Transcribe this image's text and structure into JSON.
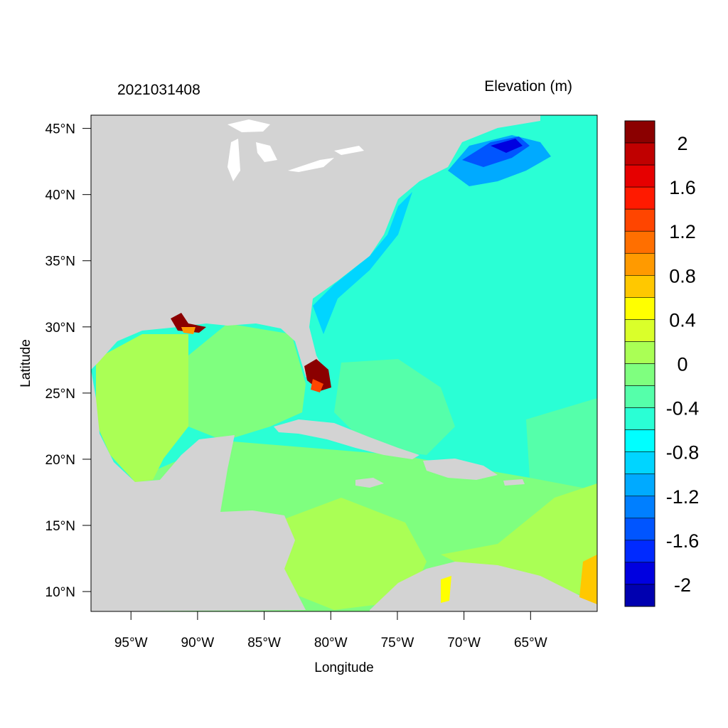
{
  "title_left": "2021031408",
  "title_right": "Elevation (m)",
  "xlabel": "Longitude",
  "ylabel": "Latitude",
  "lon_ticks": [
    {
      "value": -95,
      "label": "95°W"
    },
    {
      "value": -90,
      "label": "90°W"
    },
    {
      "value": -85,
      "label": "85°W"
    },
    {
      "value": -80,
      "label": "80°W"
    },
    {
      "value": -75,
      "label": "75°W"
    },
    {
      "value": -70,
      "label": "70°W"
    },
    {
      "value": -65,
      "label": "65°W"
    }
  ],
  "lat_ticks": [
    {
      "value": 10,
      "label": "10°N"
    },
    {
      "value": 15,
      "label": "15°N"
    },
    {
      "value": 20,
      "label": "20°N"
    },
    {
      "value": 25,
      "label": "25°N"
    },
    {
      "value": 30,
      "label": "30°N"
    },
    {
      "value": 35,
      "label": "35°N"
    },
    {
      "value": 40,
      "label": "40°N"
    },
    {
      "value": 45,
      "label": "45°N"
    }
  ],
  "lon_range": [
    -98,
    -60
  ],
  "lat_range": [
    8.5,
    46
  ],
  "land_color": "#d3d3d3",
  "colorbar": {
    "colors_top_to_bottom": [
      "#8b0000",
      "#c00000",
      "#e60000",
      "#ff1a00",
      "#ff4500",
      "#ff6f00",
      "#ff9a00",
      "#ffc800",
      "#ffff00",
      "#daff2a",
      "#aaff55",
      "#7fff7f",
      "#55ffaa",
      "#2affd5",
      "#00ffff",
      "#00d5ff",
      "#00aaff",
      "#007fff",
      "#0055ff",
      "#002aff",
      "#0000e0",
      "#0000b0"
    ],
    "labels": [
      "2",
      "1.6",
      "1.2",
      "0.8",
      "0.4",
      "0",
      "-0.4",
      "-0.8",
      "-1.2",
      "-1.6",
      "-2"
    ]
  }
}
